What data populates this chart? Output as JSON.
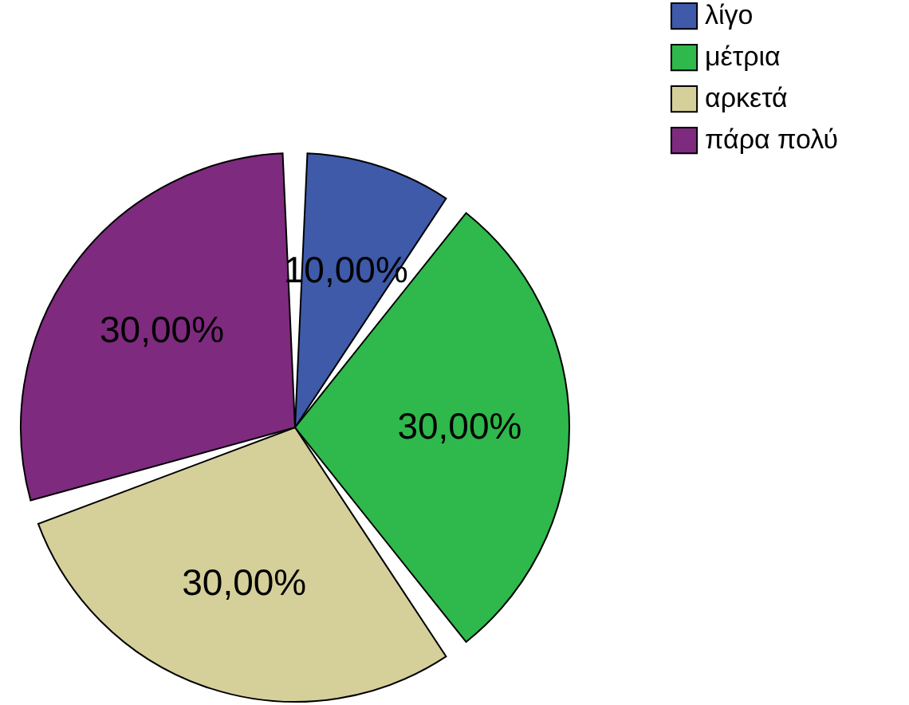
{
  "chart_data": {
    "type": "pie",
    "categories": [
      "λίγο",
      "μέτρια",
      "αρκετά",
      "πάρα πολύ"
    ],
    "values": [
      10,
      30,
      30,
      30
    ],
    "colors": [
      "#3e5aa9",
      "#2fb84b",
      "#d5cf9a",
      "#7e2a7e"
    ],
    "value_labels": [
      "10,00%",
      "30,00%",
      "30,00%",
      "30,00%"
    ],
    "legend": "top right"
  }
}
